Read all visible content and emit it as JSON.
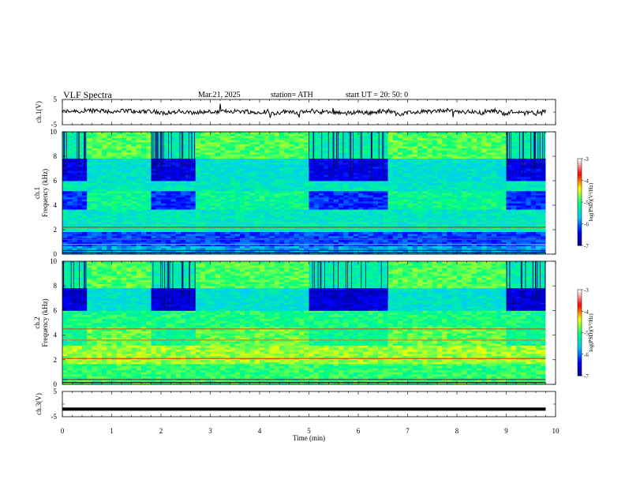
{
  "header": {
    "title": "VLF  Spectra",
    "date": "Mar.21, 2025",
    "station": "station= ATH",
    "start": "start  UT  =   20: 50: 0"
  },
  "colors": {
    "waveform": "#000000",
    "colormap": [
      "#000080",
      "#0000ff",
      "#00c8ff",
      "#00ff80",
      "#ffff00",
      "#ff0000",
      "#ffffff"
    ]
  },
  "chart_data": [
    {
      "type": "line",
      "panel": "ch1-waveform",
      "ylabel": "ch.1(V)",
      "ylim": [
        -5,
        5
      ],
      "yticks": [
        "5",
        "-5"
      ],
      "xlim": [
        0,
        10
      ],
      "description": "time-domain waveform near 0 V",
      "series": [
        {
          "x": [
            0,
            9.8
          ],
          "y": [
            0,
            0
          ]
        }
      ]
    },
    {
      "type": "heatmap",
      "panel": "ch1-spectrogram",
      "channel_label": "ch.1",
      "ylabel": "Frequency  (kHz)",
      "ylim": [
        0,
        10
      ],
      "yticks": [
        "0",
        "2",
        "4",
        "6",
        "8",
        "10"
      ],
      "xlim": [
        0,
        10
      ],
      "data_extent_min": 9.8,
      "colorbar_label": "log(PSD)(V²/Hz)",
      "colorbar_ticks": [
        "-3",
        "-4",
        "-5",
        "-6",
        "-7"
      ],
      "colorbar_range": [
        -7,
        -3
      ],
      "quiet_high_freq_segments_min": [
        [
          0,
          0.5
        ],
        [
          1.8,
          2.7
        ],
        [
          5.0,
          6.6
        ],
        [
          9.0,
          9.8
        ]
      ]
    },
    {
      "type": "heatmap",
      "panel": "ch2-spectrogram",
      "channel_label": "ch.2",
      "ylabel": "Frequency  (kHz)",
      "ylim": [
        0,
        10
      ],
      "yticks": [
        "0",
        "2",
        "4",
        "6",
        "8",
        "10"
      ],
      "xlim": [
        0,
        10
      ],
      "data_extent_min": 9.8,
      "colorbar_label": "log(PSD)(V²/Hz)",
      "colorbar_ticks": [
        "-3",
        "-4",
        "-5",
        "-6",
        "-7"
      ],
      "colorbar_range": [
        -7,
        -3
      ],
      "quiet_high_freq_segments_min": [
        [
          0,
          0.5
        ],
        [
          1.8,
          2.7
        ],
        [
          5.0,
          6.6
        ],
        [
          9.0,
          9.8
        ]
      ]
    },
    {
      "type": "line",
      "panel": "ch3-waveform",
      "ylabel": "ch.3(V)",
      "ylim": [
        -5,
        5
      ],
      "yticks": [
        "5",
        "-5"
      ],
      "xlim": [
        0,
        10
      ],
      "description": "flat trace at about -2 V",
      "series": [
        {
          "x": [
            0,
            9.8
          ],
          "y": [
            -2,
            -2
          ]
        }
      ]
    }
  ],
  "x_axis": {
    "label": "Time  (min)",
    "ticks": [
      "0",
      "1",
      "2",
      "3",
      "4",
      "5",
      "6",
      "7",
      "8",
      "9",
      "10"
    ]
  }
}
